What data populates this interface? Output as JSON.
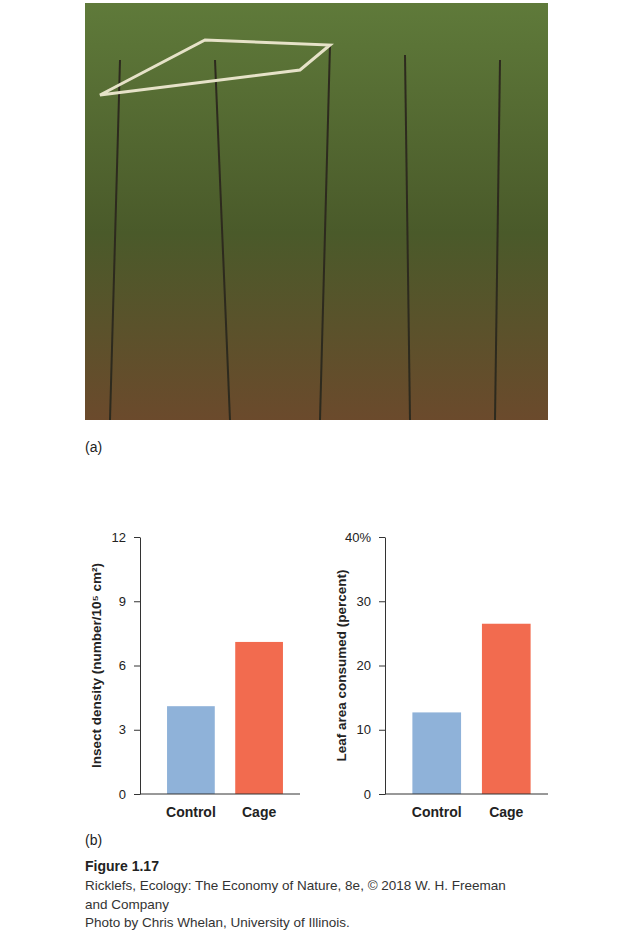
{
  "chart_data": [
    {
      "type": "bar",
      "ylabel": "Insect density (number/10⁵ cm²)",
      "categories": [
        "Control",
        "Cage"
      ],
      "values": [
        4.1,
        7.1
      ],
      "colors": [
        "#8fb2d9",
        "#f26b4f"
      ],
      "ylim": [
        0,
        12
      ],
      "yticks": [
        0,
        3,
        6,
        9,
        12
      ]
    },
    {
      "type": "bar",
      "ylabel": "Leaf area consumed (percent)",
      "categories": [
        "Control",
        "Cage"
      ],
      "values": [
        12.7,
        26.5
      ],
      "colors": [
        "#8fb2d9",
        "#f26b4f"
      ],
      "ylim": [
        0,
        40
      ],
      "yticks": [
        0,
        10,
        20,
        30,
        {
          "value": 40,
          "label": "40%"
        }
      ]
    }
  ],
  "figure": {
    "photo_label": "(a)",
    "charts_label": "(b)",
    "number": "Figure 1.17",
    "credits": [
      "Ricklefs, Ecology: The Economy of Nature, 8e, © 2018 W. H. Freeman",
      "and Company",
      "Photo by Chris Whelan, University of Illinois."
    ]
  }
}
